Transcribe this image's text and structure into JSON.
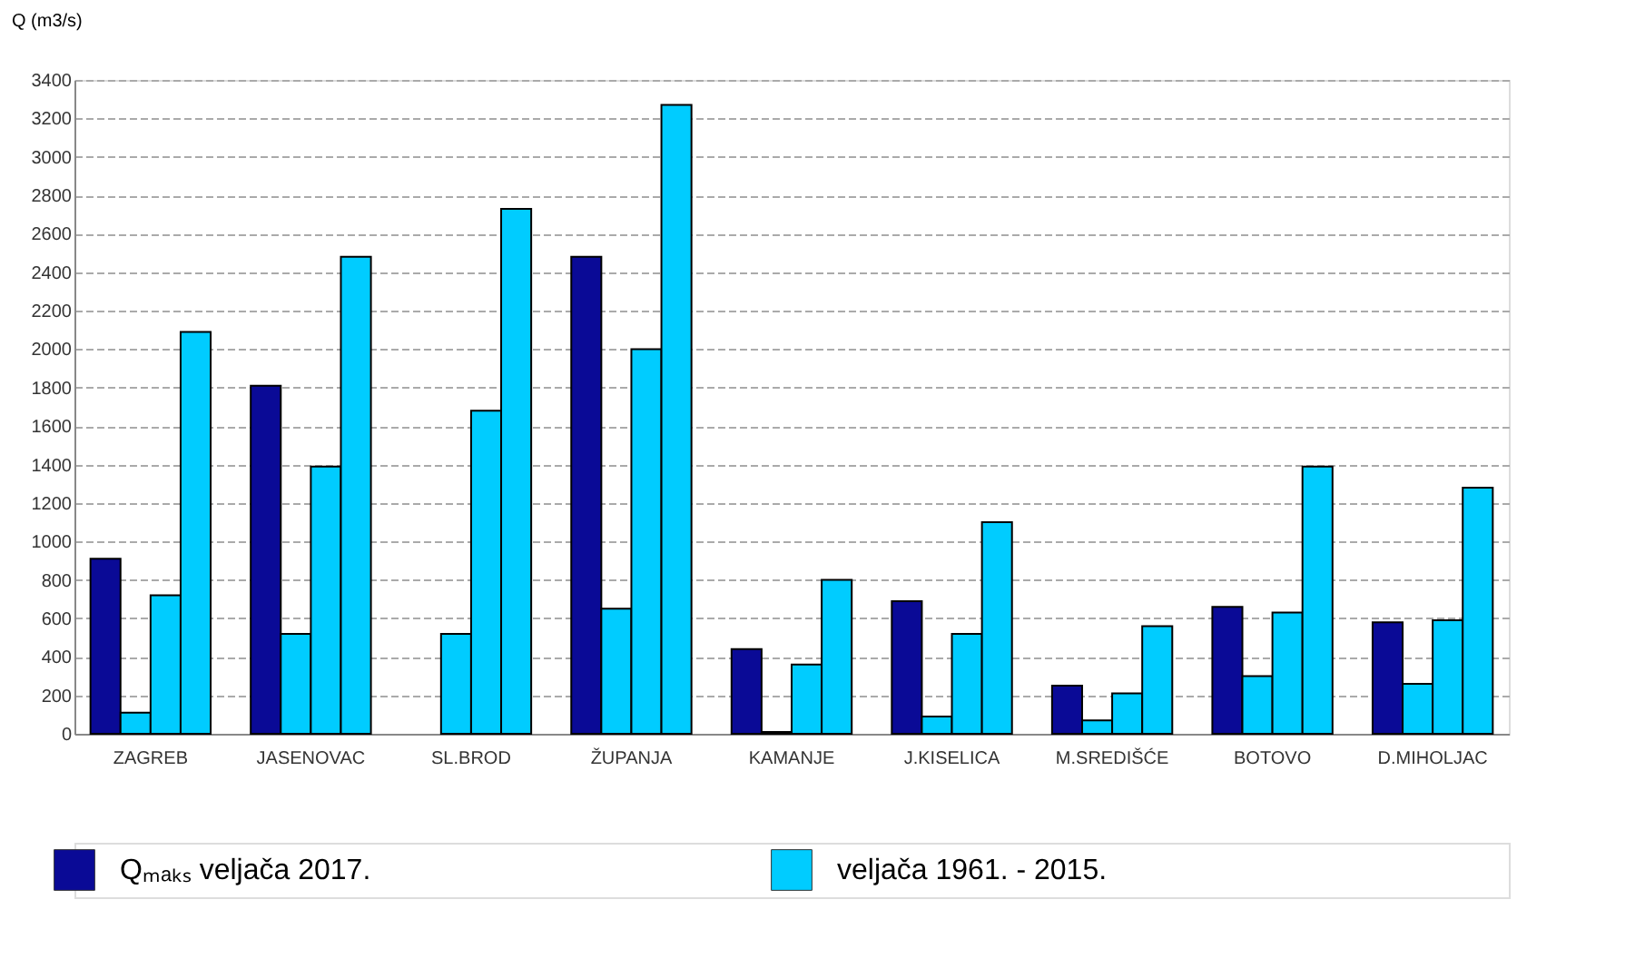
{
  "chart_data": {
    "type": "bar",
    "ylabel": "Q (m3/s)",
    "categories": [
      "ZAGREB",
      "JASENOVAC",
      "SL.BROD",
      "ŽUPANJA",
      "KAMANJE",
      "J.KISELICA",
      "M.SREDIŠĆE",
      "BOTOVO",
      "D.MIHOLJAC"
    ],
    "series": [
      {
        "name": "Qₘₐₖₛ veljača 2017.",
        "color": "#0a0a96",
        "values": [
          910,
          1810,
          null,
          2480,
          440,
          690,
          250,
          660,
          580
        ]
      },
      {
        "name": "veljača 1961. - 2015.",
        "color": "#00ccff",
        "values": [
          110,
          520,
          520,
          650,
          10,
          90,
          70,
          300,
          260
        ]
      },
      {
        "color": "#00ccff",
        "values": [
          720,
          1390,
          1680,
          2000,
          360,
          520,
          210,
          630,
          590
        ]
      },
      {
        "color": "#00ccff",
        "values": [
          2090,
          2480,
          2730,
          3270,
          800,
          1100,
          560,
          1390,
          1280
        ]
      }
    ],
    "ylim": [
      0,
      3400
    ],
    "yticks": [
      0,
      200,
      400,
      600,
      800,
      1000,
      1200,
      1400,
      1600,
      1800,
      2000,
      2200,
      2400,
      2600,
      2800,
      3000,
      3200,
      3400
    ],
    "grid": "y",
    "legend": "bottom"
  }
}
